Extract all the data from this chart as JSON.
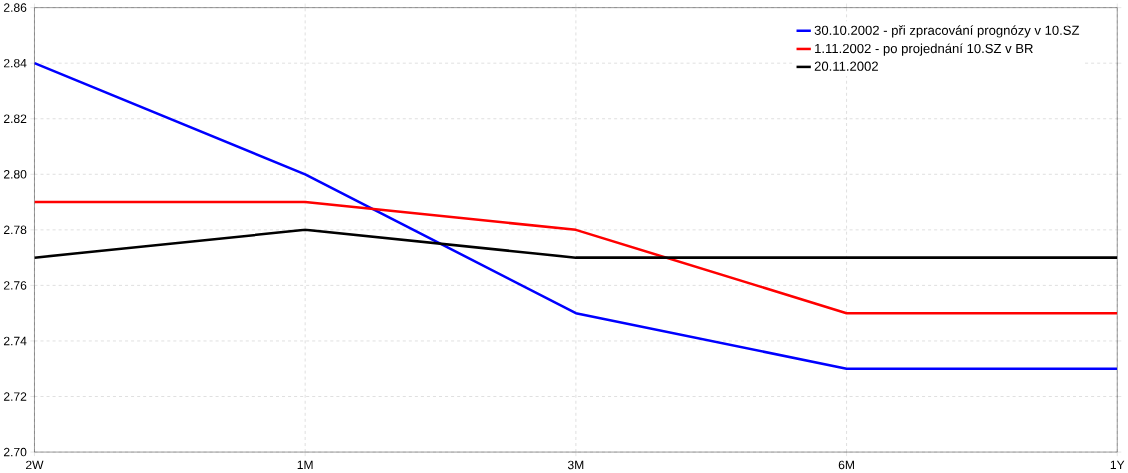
{
  "chart_data": {
    "type": "line",
    "categories": [
      "2W",
      "1M",
      "3M",
      "6M",
      "1Y"
    ],
    "series": [
      {
        "name": "30.10.2002 - při zpracování prognózy v 10.SZ",
        "color": "#0000ff",
        "values": [
          2.84,
          2.8,
          2.75,
          2.73,
          2.73
        ]
      },
      {
        "name": "1.11.2002 - po projednání 10.SZ v BR",
        "color": "#ff0000",
        "values": [
          2.79,
          2.79,
          2.78,
          2.75,
          2.75
        ]
      },
      {
        "name": "20.11.2002",
        "color": "#000000",
        "values": [
          2.77,
          2.78,
          2.77,
          2.77,
          2.77
        ]
      }
    ],
    "ylim": [
      2.7,
      2.86
    ],
    "yticks": [
      {
        "value": 2.7,
        "label": "2.70"
      },
      {
        "value": 2.72,
        "label": "2.72"
      },
      {
        "value": 2.74,
        "label": "2.74"
      },
      {
        "value": 2.76,
        "label": "2.76"
      },
      {
        "value": 2.78,
        "label": "2.78"
      },
      {
        "value": 2.8,
        "label": "2.80"
      },
      {
        "value": 2.82,
        "label": "2.82"
      },
      {
        "value": 2.84,
        "label": "2.84"
      },
      {
        "value": 2.86,
        "label": "2.86"
      }
    ],
    "grid": true,
    "legend": "top right",
    "marker": "none",
    "line_style": "solid"
  }
}
